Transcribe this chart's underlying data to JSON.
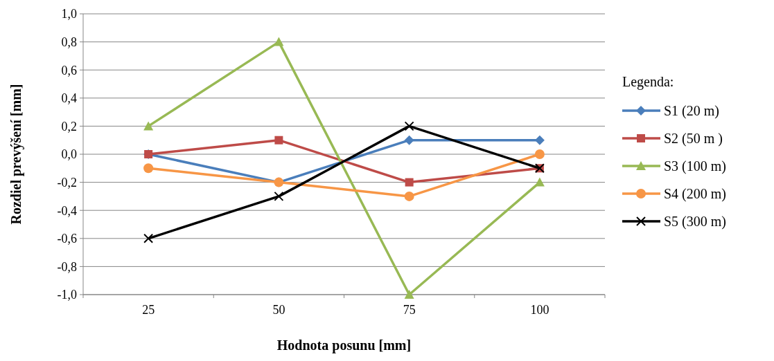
{
  "chart_data": {
    "type": "line",
    "xlabel": "Hodnota posunu [mm]",
    "ylabel": "Rozdiel prevýšení [mm]",
    "legend_title": "Legenda:",
    "legend": "right",
    "grid": "y",
    "categories": [
      "25",
      "50",
      "75",
      "100"
    ],
    "ylim": [
      -1.0,
      1.0
    ],
    "yticks": [
      {
        "value": -1.0,
        "label": "-1,0"
      },
      {
        "value": -0.8,
        "label": "-0,8"
      },
      {
        "value": -0.6,
        "label": "-0,6"
      },
      {
        "value": -0.4,
        "label": "-0,4"
      },
      {
        "value": -0.2,
        "label": "-0,2"
      },
      {
        "value": 0,
        "label": "0,0"
      },
      {
        "value": 0.2,
        "label": "0,2"
      },
      {
        "value": 0.4,
        "label": "0,4"
      },
      {
        "value": 0.6,
        "label": "0,6"
      },
      {
        "value": 0.8,
        "label": "0,8"
      },
      {
        "value": 1.0,
        "label": "1,0"
      }
    ],
    "series": [
      {
        "name": "S1 (20 m)",
        "color": "#4a7ebb",
        "marker": "diamond",
        "values": [
          0,
          -0.2,
          0.1,
          0.1
        ]
      },
      {
        "name": "S2 (50 m )",
        "color": "#be4b48",
        "marker": "square",
        "values": [
          0,
          0.1,
          -0.2,
          -0.1
        ]
      },
      {
        "name": "S3 (100 m)",
        "color": "#98b954",
        "marker": "triangle",
        "values": [
          0.2,
          0.8,
          -1.0,
          -0.2
        ]
      },
      {
        "name": "S4 (200 m)",
        "color": "#f79646",
        "marker": "circle",
        "values": [
          -0.1,
          -0.2,
          -0.3,
          0
        ]
      },
      {
        "name": "S5 (300 m)",
        "color": "#000000",
        "marker": "cross",
        "values": [
          -0.6,
          -0.3,
          0.2,
          -0.1
        ]
      }
    ]
  }
}
